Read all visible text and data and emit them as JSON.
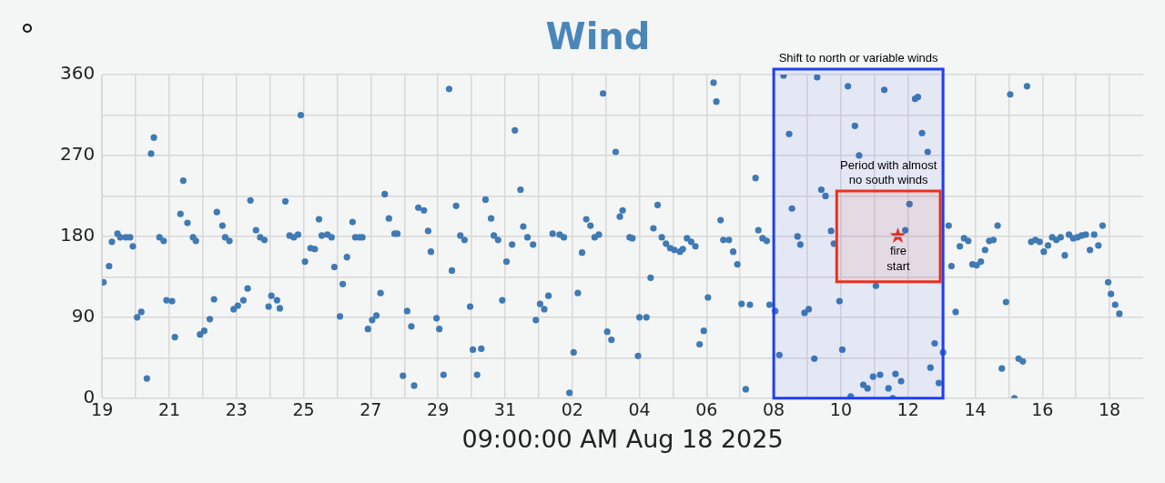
{
  "chart_data": {
    "type": "scatter",
    "title": "Wind",
    "xlabel": "09:00:00 AM Aug 18 2025",
    "color": "#3f7ab3",
    "marker": "circle",
    "grid": true,
    "xlim": [
      "2025-07-19",
      "2025-08-19"
    ],
    "xticks": [
      {
        "value": "2025-07-19",
        "label": "19"
      },
      {
        "value": "2025-07-20",
        "label": null
      },
      {
        "value": "2025-07-21",
        "label": "21"
      },
      {
        "value": "2025-07-22",
        "label": null
      },
      {
        "value": "2025-07-23",
        "label": "23"
      },
      {
        "value": "2025-07-24",
        "label": null
      },
      {
        "value": "2025-07-25",
        "label": "25"
      },
      {
        "value": "2025-07-26",
        "label": null
      },
      {
        "value": "2025-07-27",
        "label": "27"
      },
      {
        "value": "2025-07-28",
        "label": null
      },
      {
        "value": "2025-07-29",
        "label": "29"
      },
      {
        "value": "2025-07-30",
        "label": null
      },
      {
        "value": "2025-07-31",
        "label": "31"
      },
      {
        "value": "2025-08-01",
        "label": null
      },
      {
        "value": "2025-08-02",
        "label": "02"
      },
      {
        "value": "2025-08-03",
        "label": null
      },
      {
        "value": "2025-08-04",
        "label": "04"
      },
      {
        "value": "2025-08-05",
        "label": null
      },
      {
        "value": "2025-08-06",
        "label": "06"
      },
      {
        "value": "2025-08-07",
        "label": null
      },
      {
        "value": "2025-08-08",
        "label": "08"
      },
      {
        "value": "2025-08-09",
        "label": null
      },
      {
        "value": "2025-08-10",
        "label": "10"
      },
      {
        "value": "2025-08-11",
        "label": null
      },
      {
        "value": "2025-08-12",
        "label": "12"
      },
      {
        "value": "2025-08-13",
        "label": null
      },
      {
        "value": "2025-08-14",
        "label": "14"
      },
      {
        "value": "2025-08-15",
        "label": null
      },
      {
        "value": "2025-08-16",
        "label": "16"
      },
      {
        "value": "2025-08-17",
        "label": null
      },
      {
        "value": "2025-08-18",
        "label": "18"
      }
    ],
    "ylim": [
      0,
      360
    ],
    "yticks": [
      0,
      {
        "value": 45,
        "label": null
      },
      90,
      {
        "value": 135,
        "label": null
      },
      180,
      {
        "value": 225,
        "label": null
      },
      270,
      {
        "value": 315,
        "label": null
      },
      360
    ],
    "x": [
      "2025-07-19T01:00",
      "2025-07-19T05:00",
      "2025-07-19T07:00",
      "2025-07-19T11:00",
      "2025-07-19T13:00",
      "2025-07-19T17:00",
      "2025-07-19T20:00",
      "2025-07-19T22:00",
      "2025-07-20T01:00",
      "2025-07-20T04:00",
      "2025-07-20T08:00",
      "2025-07-20T11:00",
      "2025-07-20T13:00",
      "2025-07-20T17:00",
      "2025-07-20T20:00",
      "2025-07-20T22:00",
      "2025-07-21T02:00",
      "2025-07-21T04:00",
      "2025-07-21T08:00",
      "2025-07-21T10:00",
      "2025-07-21T13:00",
      "2025-07-21T17:00",
      "2025-07-21T19:00",
      "2025-07-21T22:00",
      "2025-07-22T01:00",
      "2025-07-22T05:00",
      "2025-07-22T08:00",
      "2025-07-22T10:00",
      "2025-07-22T14:00",
      "2025-07-22T16:00",
      "2025-07-22T19:00",
      "2025-07-22T22:00",
      "2025-07-23T01:00",
      "2025-07-23T05:00",
      "2025-07-23T08:00",
      "2025-07-23T10:00",
      "2025-07-23T14:00",
      "2025-07-23T17:00",
      "2025-07-23T20:00",
      "2025-07-23T23:00",
      "2025-07-24T01:00",
      "2025-07-24T05:00",
      "2025-07-24T07:00",
      "2025-07-24T11:00",
      "2025-07-24T14:00",
      "2025-07-24T17:00",
      "2025-07-24T20:00",
      "2025-07-24T22:00",
      "2025-07-25T01:00",
      "2025-07-25T05:00",
      "2025-07-25T08:00",
      "2025-07-25T11:00",
      "2025-07-25T13:00",
      "2025-07-25T17:00",
      "2025-07-25T20:00",
      "2025-07-25T22:00",
      "2025-07-26T02:00",
      "2025-07-26T04:00",
      "2025-07-26T07:00",
      "2025-07-26T11:00",
      "2025-07-26T13:00",
      "2025-07-26T16:00",
      "2025-07-26T18:00",
      "2025-07-26T22:00",
      "2025-07-27T01:00",
      "2025-07-27T04:00",
      "2025-07-27T07:00",
      "2025-07-27T10:00",
      "2025-07-27T13:00",
      "2025-07-27T17:00",
      "2025-07-27T19:00",
      "2025-07-27T23:00",
      "2025-07-28T02:00",
      "2025-07-28T05:00",
      "2025-07-28T07:00",
      "2025-07-28T10:00",
      "2025-07-28T14:00",
      "2025-07-28T17:00",
      "2025-07-28T19:00",
      "2025-07-28T23:00",
      "2025-07-29T01:00",
      "2025-07-29T04:00",
      "2025-07-29T08:00",
      "2025-07-29T10:00",
      "2025-07-29T13:00",
      "2025-07-29T16:00",
      "2025-07-29T19:00",
      "2025-07-29T23:00",
      "2025-07-30T01:00",
      "2025-07-30T04:00",
      "2025-07-30T07:00",
      "2025-07-30T10:00",
      "2025-07-30T14:00",
      "2025-07-30T16:00",
      "2025-07-30T19:00",
      "2025-07-30T22:00",
      "2025-07-31T01:00",
      "2025-07-31T05:00",
      "2025-07-31T07:00",
      "2025-07-31T11:00",
      "2025-07-31T13:00",
      "2025-07-31T16:00",
      "2025-07-31T20:00",
      "2025-07-31T22:00",
      "2025-08-01T01:00",
      "2025-08-01T04:00",
      "2025-08-01T07:00",
      "2025-08-01T10:00",
      "2025-08-01T15:00",
      "2025-08-01T18:00",
      "2025-08-01T22:00",
      "2025-08-02T01:00",
      "2025-08-02T04:00",
      "2025-08-02T07:00",
      "2025-08-02T10:00",
      "2025-08-02T13:00",
      "2025-08-02T16:00",
      "2025-08-02T19:00",
      "2025-08-02T22:00",
      "2025-08-03T01:00",
      "2025-08-03T04:00",
      "2025-08-03T07:00",
      "2025-08-03T10:00",
      "2025-08-03T12:00",
      "2025-08-03T17:00",
      "2025-08-03T19:00",
      "2025-08-03T23:00",
      "2025-08-04T00:00",
      "2025-08-04T05:00",
      "2025-08-04T08:00",
      "2025-08-04T10:00",
      "2025-08-04T13:00",
      "2025-08-04T16:00",
      "2025-08-04T19:00",
      "2025-08-04T22:00",
      "2025-08-05T01:00",
      "2025-08-05T05:00",
      "2025-08-05T07:00",
      "2025-08-05T10:00",
      "2025-08-05T13:00",
      "2025-08-05T16:00",
      "2025-08-05T19:00",
      "2025-08-05T22:00",
      "2025-08-06T01:00",
      "2025-08-06T05:00",
      "2025-08-06T07:00",
      "2025-08-06T10:00",
      "2025-08-06T12:00",
      "2025-08-06T16:00",
      "2025-08-06T19:00",
      "2025-08-06T22:00",
      "2025-08-07T01:00",
      "2025-08-07T04:00",
      "2025-08-07T07:00",
      "2025-08-07T11:00",
      "2025-08-07T13:00",
      "2025-08-07T16:00",
      "2025-08-07T19:00",
      "2025-08-07T21:00",
      "2025-08-08T01:00",
      "2025-08-08T04:00",
      "2025-08-08T07:00",
      "2025-08-08T11:00",
      "2025-08-08T13:00",
      "2025-08-08T17:00",
      "2025-08-08T19:00",
      "2025-08-08T22:00",
      "2025-08-09T01:00",
      "2025-08-09T05:00",
      "2025-08-09T07:00",
      "2025-08-09T10:00",
      "2025-08-09T13:00",
      "2025-08-09T17:00",
      "2025-08-09T19:00",
      "2025-08-09T23:00",
      "2025-08-10T01:00",
      "2025-08-10T05:00",
      "2025-08-10T07:00",
      "2025-08-10T10:00",
      "2025-08-10T13:00",
      "2025-08-10T16:00",
      "2025-08-10T19:00",
      "2025-08-10T23:00",
      "2025-08-11T01:00",
      "2025-08-11T04:00",
      "2025-08-11T07:00",
      "2025-08-11T10:00",
      "2025-08-11T13:00",
      "2025-08-11T15:00",
      "2025-08-11T19:00",
      "2025-08-11T22:00",
      "2025-08-12T01:00",
      "2025-08-12T05:00",
      "2025-08-12T07:00",
      "2025-08-12T10:00",
      "2025-08-12T14:00",
      "2025-08-12T16:00",
      "2025-08-12T19:00",
      "2025-08-12T22:00",
      "2025-08-13T01:00",
      "2025-08-13T05:00",
      "2025-08-13T07:00",
      "2025-08-13T10:00",
      "2025-08-13T13:00",
      "2025-08-13T16:00",
      "2025-08-13T19:00",
      "2025-08-13T22:00",
      "2025-08-14T01:00",
      "2025-08-14T04:00",
      "2025-08-14T07:00",
      "2025-08-14T10:00",
      "2025-08-14T13:00",
      "2025-08-14T16:00",
      "2025-08-14T19:00",
      "2025-08-14T22:00",
      "2025-08-15T01:00",
      "2025-08-15T04:00",
      "2025-08-15T07:00",
      "2025-08-15T10:00",
      "2025-08-15T13:00",
      "2025-08-15T16:00",
      "2025-08-15T19:00",
      "2025-08-15T22:00",
      "2025-08-16T01:00",
      "2025-08-16T04:00",
      "2025-08-16T07:00",
      "2025-08-16T10:00",
      "2025-08-16T13:00",
      "2025-08-16T16:00",
      "2025-08-16T19:00",
      "2025-08-16T22:00",
      "2025-08-17T01:00",
      "2025-08-17T04:00",
      "2025-08-17T07:00",
      "2025-08-17T10:00",
      "2025-08-17T13:00",
      "2025-08-17T16:00",
      "2025-08-17T19:00",
      "2025-08-17T23:00",
      "2025-08-18T01:00",
      "2025-08-18T04:00",
      "2025-08-18T07:00"
    ],
    "values": [
      129,
      147,
      174,
      183,
      179,
      179,
      179,
      169,
      90,
      96,
      22,
      272,
      290,
      179,
      175,
      109,
      108,
      68,
      205,
      242,
      195,
      179,
      175,
      71,
      75,
      88,
      110,
      207,
      192,
      179,
      175,
      99,
      103,
      109,
      122,
      220,
      187,
      179,
      176,
      102,
      114,
      109,
      100,
      219,
      181,
      179,
      182,
      315,
      152,
      167,
      166,
      199,
      181,
      182,
      179,
      146,
      91,
      127,
      157,
      196,
      179,
      179,
      179,
      77,
      87,
      92,
      117,
      227,
      200,
      183,
      183,
      25,
      97,
      80,
      14,
      212,
      209,
      186,
      163,
      89,
      77,
      26,
      344,
      142,
      214,
      181,
      176,
      102,
      54,
      26,
      55,
      221,
      200,
      181,
      176,
      109,
      152,
      171,
      298,
      232,
      191,
      179,
      171,
      87,
      105,
      99,
      114,
      183,
      182,
      179,
      6,
      51,
      117,
      162,
      199,
      192,
      179,
      182,
      339,
      74,
      65,
      274,
      202,
      209,
      179,
      178,
      47,
      90,
      90,
      134,
      189,
      215,
      179,
      172,
      167,
      165,
      163,
      166,
      178,
      174,
      169,
      60,
      75,
      112,
      351,
      330,
      198,
      176,
      176,
      163,
      149,
      105,
      10,
      104,
      245,
      187,
      178,
      175,
      104,
      97,
      48,
      359,
      294,
      211,
      180,
      171,
      95,
      99,
      44,
      357,
      232,
      225,
      186,
      172,
      108,
      54,
      347,
      2,
      303,
      270,
      15,
      11,
      24,
      125,
      26,
      343,
      11,
      0,
      27,
      19,
      187,
      216,
      333,
      335,
      295,
      274,
      34,
      61,
      17,
      51,
      192,
      147,
      96,
      169,
      178,
      175,
      149,
      148,
      152,
      165,
      175,
      176,
      192,
      33,
      107,
      338,
      0,
      44,
      41,
      347,
      174,
      176,
      174,
      163,
      170,
      179,
      176,
      179,
      159,
      182,
      178,
      179,
      181,
      182,
      165,
      182,
      170,
      192,
      129,
      116,
      104,
      94
    ],
    "bands": [
      {
        "axis": "x",
        "from": "2025-08-08",
        "to": "2025-08-13T01:00",
        "label": "Shift to north or variable winds",
        "color": "#1f3ff0"
      },
      {
        "axis": "x",
        "from": "2025-08-09T21:00",
        "to": "2025-08-12T23:00",
        "label": "Period with almost no south winds",
        "color": "#e8321e"
      }
    ],
    "annotations": [
      {
        "text": "fire start",
        "x": "2025-08-11T17:00",
        "y": 181
      }
    ]
  }
}
